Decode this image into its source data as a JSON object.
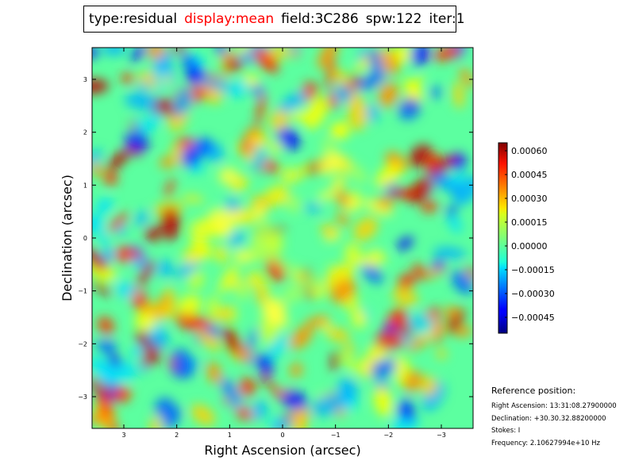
{
  "title_bar": {
    "type": "type:residual",
    "display": "display:mean",
    "field": "field:3C286",
    "spw": "spw:122",
    "iter": "iter:1"
  },
  "chart_data": {
    "type": "heatmap",
    "xlabel": "Right Ascension (arcsec)",
    "ylabel": "Declination (arcsec)",
    "xlim": [
      3.6,
      -3.6
    ],
    "ylim": [
      -3.6,
      3.6
    ],
    "x_ticks": [
      3,
      2,
      1,
      0,
      -1,
      -2,
      -3
    ],
    "x_tick_labels": [
      "3",
      "2",
      "1",
      "0",
      "−1",
      "−2",
      "−3"
    ],
    "y_ticks": [
      3,
      2,
      1,
      0,
      -1,
      -2,
      -3
    ],
    "y_tick_labels": [
      "3",
      "2",
      "1",
      "0",
      "−1",
      "−2",
      "−3"
    ],
    "colormap": "jet",
    "colorbar": {
      "range": [
        -0.00055,
        0.00065
      ],
      "ticks": [
        0.0006,
        0.00045,
        0.0003,
        0.00015,
        0.0,
        -0.00015,
        -0.0003,
        -0.00045
      ],
      "tick_labels": [
        "0.00060",
        "0.00045",
        "0.00030",
        "0.00015",
        "0.00000",
        "−0.00015",
        "−0.00030",
        "−0.00045"
      ]
    }
  },
  "reference": {
    "title": "Reference position:",
    "ra": "Right Ascension: 13:31:08.27900000",
    "dec": "Declination: +30.30.32.88200000",
    "stokes": "Stokes: I",
    "freq": "Frequency: 2.10627994e+10 Hz"
  }
}
